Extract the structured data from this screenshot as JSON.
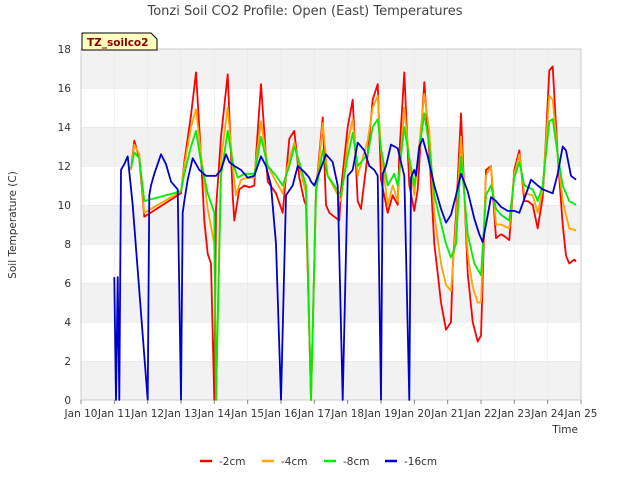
{
  "chart_data": {
    "type": "line",
    "title": "Tonzi Soil CO2 Profile: Open (East) Temperatures",
    "xlabel": "Time",
    "ylabel": "Soil Temperature (C)",
    "badge": "TZ_soilco2",
    "xlim": [
      0,
      15
    ],
    "ylim": [
      0,
      18
    ],
    "x_tick_values": [
      0,
      1,
      2,
      3,
      4,
      5,
      6,
      7,
      8,
      9,
      10,
      11,
      12,
      13,
      14,
      15
    ],
    "x_tick_labels": [
      "Jan 10",
      "Jan 11",
      "Jan 12",
      "Jan 13",
      "Jan 14",
      "Jan 15",
      "Jan 16",
      "Jan 17",
      "Jan 18",
      "Jan 19",
      "Jan 20",
      "Jan 21",
      "Jan 22",
      "Jan 23",
      "Jan 24",
      "Jan 25"
    ],
    "y_ticks": [
      0,
      2,
      4,
      6,
      8,
      10,
      12,
      14,
      16,
      18
    ],
    "grid": "horizontal bands",
    "legend_position": "bottom",
    "series": [
      {
        "name": "-2cm",
        "color": "#ff0000",
        "x": [
          1.5,
          1.6,
          1.75,
          1.9,
          3.0,
          3.1,
          3.3,
          3.45,
          3.6,
          3.7,
          3.8,
          3.9,
          4.0,
          4.05,
          4.2,
          4.4,
          4.55,
          4.6,
          4.75,
          4.9,
          5.05,
          5.2,
          5.25,
          5.4,
          5.6,
          5.85,
          6.05,
          6.15,
          6.25,
          6.4,
          6.55,
          6.7,
          6.75,
          6.9,
          7.05,
          7.25,
          7.35,
          7.45,
          7.6,
          7.75,
          7.8,
          8.0,
          8.15,
          8.3,
          8.4,
          8.6,
          8.75,
          8.9,
          9.0,
          9.2,
          9.35,
          9.5,
          9.55,
          9.7,
          9.85,
          10.0,
          10.1,
          10.3,
          10.45,
          10.6,
          10.7,
          10.8,
          10.95,
          11.1,
          11.15,
          11.25,
          11.4,
          11.6,
          11.75,
          11.9,
          12.0,
          12.15,
          12.3,
          12.45,
          12.6,
          12.7,
          12.85,
          13.0,
          13.15,
          13.3,
          13.4,
          13.55,
          13.7,
          13.85,
          13.95,
          14.05,
          14.15,
          14.3,
          14.45,
          14.55,
          14.65,
          14.8,
          14.85
        ],
        "y": [
          11.8,
          13.3,
          12.4,
          9.4,
          10.6,
          12.2,
          14.6,
          16.8,
          12.5,
          9.2,
          7.5,
          7.0,
          0.0,
          9.8,
          13.5,
          16.7,
          10.5,
          9.2,
          10.8,
          11.0,
          10.9,
          11.0,
          12.5,
          16.2,
          11.2,
          10.6,
          9.6,
          11.5,
          13.4,
          13.8,
          11.4,
          10.2,
          10.0,
          0.0,
          10.7,
          14.5,
          10.0,
          9.6,
          9.4,
          9.2,
          10.8,
          14.0,
          15.4,
          10.2,
          9.8,
          12.6,
          15.4,
          16.2,
          11.3,
          9.6,
          10.5,
          10.0,
          12.6,
          16.8,
          11.0,
          9.7,
          10.8,
          16.3,
          12.7,
          8.0,
          6.5,
          5.0,
          3.6,
          4.0,
          6.8,
          9.5,
          14.7,
          6.5,
          4.0,
          3.0,
          3.3,
          11.8,
          12.0,
          8.3,
          8.5,
          8.4,
          8.2,
          11.8,
          12.8,
          10.2,
          10.2,
          10.0,
          8.8,
          10.4,
          13.5,
          16.9,
          17.1,
          12.5,
          9.0,
          7.4,
          7.0,
          7.2,
          7.1
        ]
      },
      {
        "name": "-4cm",
        "color": "#ffa500",
        "x": [
          1.5,
          1.6,
          1.75,
          1.9,
          3.0,
          3.1,
          3.3,
          3.45,
          3.6,
          3.8,
          4.0,
          4.05,
          4.2,
          4.4,
          4.55,
          4.65,
          4.8,
          5.0,
          5.2,
          5.25,
          5.4,
          5.6,
          5.85,
          6.05,
          6.2,
          6.4,
          6.55,
          6.75,
          6.9,
          7.05,
          7.25,
          7.4,
          7.8,
          8.0,
          8.15,
          8.3,
          8.6,
          8.75,
          8.9,
          9.0,
          9.2,
          9.35,
          9.5,
          9.7,
          9.85,
          10.0,
          10.3,
          10.45,
          10.6,
          10.8,
          10.95,
          11.1,
          11.25,
          11.4,
          11.6,
          11.75,
          11.9,
          12.0,
          12.15,
          12.3,
          12.45,
          12.6,
          12.85,
          13.0,
          13.15,
          13.3,
          13.55,
          13.7,
          13.85,
          14.05,
          14.15,
          14.3,
          14.45,
          14.65,
          14.85
        ],
        "y": [
          11.8,
          13.1,
          12.6,
          9.6,
          10.7,
          12.0,
          14.0,
          14.9,
          12.6,
          9.8,
          8.0,
          0.0,
          12.3,
          15.0,
          12.0,
          10.5,
          11.3,
          11.4,
          11.4,
          12.3,
          14.3,
          12.0,
          11.2,
          10.6,
          12.0,
          13.2,
          12.0,
          10.6,
          0.0,
          10.5,
          14.2,
          11.5,
          10.2,
          13.2,
          14.4,
          11.5,
          13.3,
          15.0,
          15.6,
          12.8,
          10.0,
          11.0,
          10.2,
          15.0,
          12.3,
          10.5,
          15.7,
          13.8,
          9.5,
          7.0,
          5.9,
          5.6,
          9.0,
          13.5,
          7.5,
          5.8,
          5.0,
          5.0,
          11.5,
          12.0,
          9.0,
          9.0,
          8.8,
          11.6,
          12.6,
          10.6,
          10.5,
          9.6,
          10.8,
          15.6,
          15.4,
          12.5,
          10.2,
          8.8,
          8.7
        ]
      },
      {
        "name": "-8cm",
        "color": "#00ee00",
        "x": [
          1.5,
          1.6,
          1.75,
          1.9,
          3.0,
          3.1,
          3.3,
          3.45,
          3.6,
          3.8,
          4.0,
          4.05,
          4.2,
          4.4,
          4.55,
          4.7,
          4.9,
          5.2,
          5.25,
          5.4,
          5.6,
          5.85,
          6.05,
          6.25,
          6.4,
          6.55,
          6.75,
          6.9,
          7.05,
          7.25,
          7.4,
          7.8,
          8.0,
          8.15,
          8.3,
          8.6,
          8.75,
          8.9,
          9.0,
          9.2,
          9.4,
          9.5,
          9.7,
          9.85,
          10.0,
          10.3,
          10.45,
          10.6,
          10.95,
          11.1,
          11.25,
          11.4,
          11.6,
          11.8,
          12.0,
          12.15,
          12.3,
          12.45,
          12.6,
          12.85,
          13.0,
          13.15,
          13.3,
          13.55,
          13.7,
          13.85,
          14.05,
          14.15,
          14.3,
          14.45,
          14.65,
          14.85
        ],
        "y": [
          11.9,
          12.7,
          12.4,
          10.2,
          10.7,
          11.6,
          13.0,
          13.8,
          12.2,
          10.6,
          9.6,
          0.0,
          11.5,
          13.8,
          12.2,
          11.4,
          11.6,
          11.6,
          12.0,
          13.5,
          12.0,
          11.5,
          11.0,
          12.0,
          13.0,
          12.2,
          11.0,
          0.0,
          10.7,
          12.8,
          11.5,
          10.5,
          12.5,
          13.7,
          12.0,
          12.6,
          14.0,
          14.4,
          12.9,
          11.0,
          11.6,
          11.0,
          14.0,
          12.4,
          11.0,
          14.7,
          13.0,
          10.5,
          8.0,
          7.3,
          8.0,
          12.5,
          8.5,
          7.0,
          6.4,
          10.5,
          11.0,
          9.8,
          9.5,
          9.2,
          11.4,
          12.2,
          11.0,
          10.8,
          10.2,
          11.0,
          14.3,
          14.4,
          12.6,
          11.0,
          10.2,
          10.0
        ]
      },
      {
        "name": "-16cm",
        "color": "#0000cc",
        "x": [
          1.0,
          1.05,
          1.1,
          1.15,
          1.2,
          1.3,
          1.4,
          1.55,
          2.0,
          2.05,
          2.1,
          2.2,
          2.4,
          2.55,
          2.7,
          2.9,
          3.0,
          3.05,
          3.1,
          3.2,
          3.35,
          3.55,
          3.75,
          3.9,
          4.0,
          4.05,
          4.2,
          4.35,
          4.45,
          4.6,
          4.8,
          5.0,
          5.2,
          5.4,
          5.55,
          5.7,
          5.85,
          6.0,
          6.15,
          6.35,
          6.5,
          6.7,
          6.85,
          6.9,
          7.0,
          7.2,
          7.35,
          7.55,
          7.7,
          7.85,
          8.0,
          8.15,
          8.3,
          8.5,
          8.65,
          8.8,
          8.9,
          9.0,
          9.05,
          9.15,
          9.3,
          9.5,
          9.7,
          9.85,
          9.9,
          10.0,
          10.05,
          10.15,
          10.25,
          10.4,
          10.6,
          10.8,
          10.95,
          11.1,
          11.25,
          11.4,
          11.6,
          11.8,
          11.95,
          12.05,
          12.15,
          12.3,
          12.45,
          12.6,
          12.8,
          13.0,
          13.15,
          13.3,
          13.5,
          13.7,
          13.85,
          14.0,
          14.15,
          14.3,
          14.45,
          14.55,
          14.7,
          14.85
        ],
        "y": [
          6.3,
          0.0,
          6.3,
          0.0,
          11.8,
          12.1,
          12.5,
          10.0,
          0.0,
          10.5,
          11.0,
          11.6,
          12.6,
          12.1,
          11.2,
          10.8,
          0.0,
          9.6,
          10.2,
          11.3,
          12.4,
          11.8,
          11.5,
          11.5,
          11.5,
          11.5,
          11.8,
          12.6,
          12.2,
          12.0,
          11.8,
          11.4,
          11.5,
          12.5,
          12.0,
          11.0,
          8.0,
          0.0,
          10.5,
          11.0,
          12.0,
          11.7,
          11.4,
          11.2,
          11.0,
          11.9,
          12.6,
          12.2,
          11.0,
          0.0,
          11.5,
          11.8,
          13.2,
          12.8,
          12.0,
          11.8,
          11.5,
          0.0,
          11.6,
          12.0,
          13.1,
          12.9,
          11.5,
          0.0,
          11.4,
          11.8,
          11.5,
          13.0,
          13.4,
          12.5,
          11.0,
          9.8,
          9.1,
          9.5,
          10.5,
          11.6,
          10.7,
          9.3,
          8.5,
          8.1,
          9.0,
          10.4,
          10.2,
          9.9,
          9.7,
          9.7,
          9.6,
          10.3,
          11.3,
          11.0,
          10.8,
          10.7,
          10.6,
          11.6,
          13.0,
          12.8,
          11.5,
          11.3
        ]
      }
    ]
  }
}
